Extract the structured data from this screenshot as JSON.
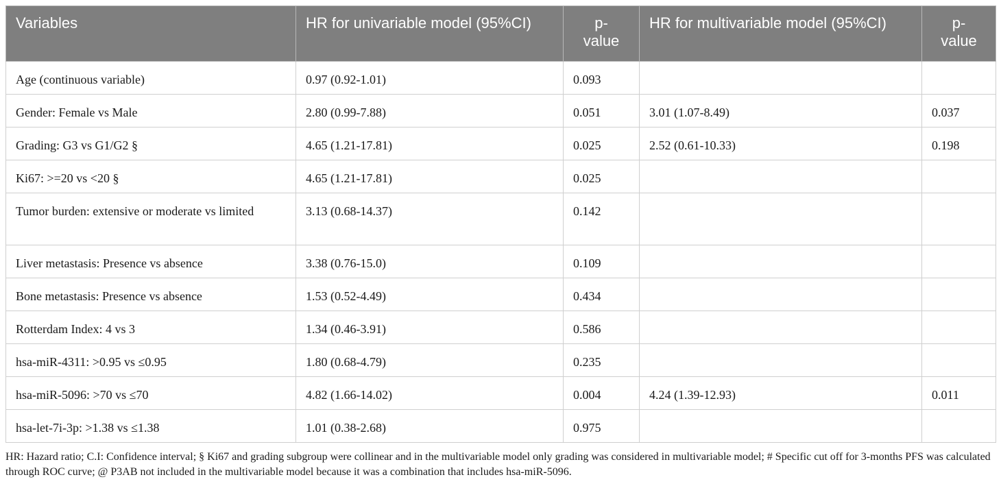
{
  "table": {
    "headers": [
      "Variables",
      "HR for univariable model (95%CI)",
      "p-\nvalue",
      "HR for multivariable model (95%CI)",
      "p-\nvalue"
    ],
    "rows": [
      [
        "Age (continuous variable)",
        "0.97 (0.92-1.01)",
        "0.093",
        "",
        ""
      ],
      [
        "Gender: Female vs Male",
        "2.80 (0.99-7.88)",
        "0.051",
        "3.01 (1.07-8.49)",
        "0.037"
      ],
      [
        "Grading: G3 vs G1/G2 §",
        "4.65 (1.21-17.81)",
        "0.025",
        "2.52 (0.61-10.33)",
        "0.198"
      ],
      [
        "Ki67: >=20 vs <20 §",
        "4.65 (1.21-17.81)",
        "0.025",
        "",
        ""
      ],
      [
        "Tumor burden: extensive or moderate vs limited",
        "3.13 (0.68-14.37)",
        "0.142",
        "",
        ""
      ],
      [
        "Liver metastasis: Presence vs absence",
        "3.38 (0.76-15.0)",
        "0.109",
        "",
        ""
      ],
      [
        "Bone metastasis: Presence vs absence",
        "1.53 (0.52-4.49)",
        "0.434",
        "",
        ""
      ],
      [
        "Rotterdam Index: 4 vs 3",
        "1.34 (0.46-3.91)",
        "0.586",
        "",
        ""
      ],
      [
        "hsa-miR-4311: >0.95 vs ≤0.95",
        "1.80 (0.68-4.79)",
        "0.235",
        "",
        ""
      ],
      [
        "hsa-miR-5096: >70 vs ≤70",
        "4.82 (1.66-14.02)",
        "0.004",
        "4.24 (1.39-12.93)",
        "0.011"
      ],
      [
        "hsa-let-7i-3p: >1.38 vs ≤1.38",
        "1.01 (0.38-2.68)",
        "0.975",
        "",
        ""
      ]
    ]
  },
  "footnote": "HR: Hazard ratio; C.I: Confidence interval; § Ki67 and grading subgroup were collinear and in the multivariable model only grading was considered in multivariable model; # Specific cut off for 3-months PFS was calculated through ROC curve; @ P3AB not included in the multivariable model because it was a combination that includes hsa-miR-5096."
}
